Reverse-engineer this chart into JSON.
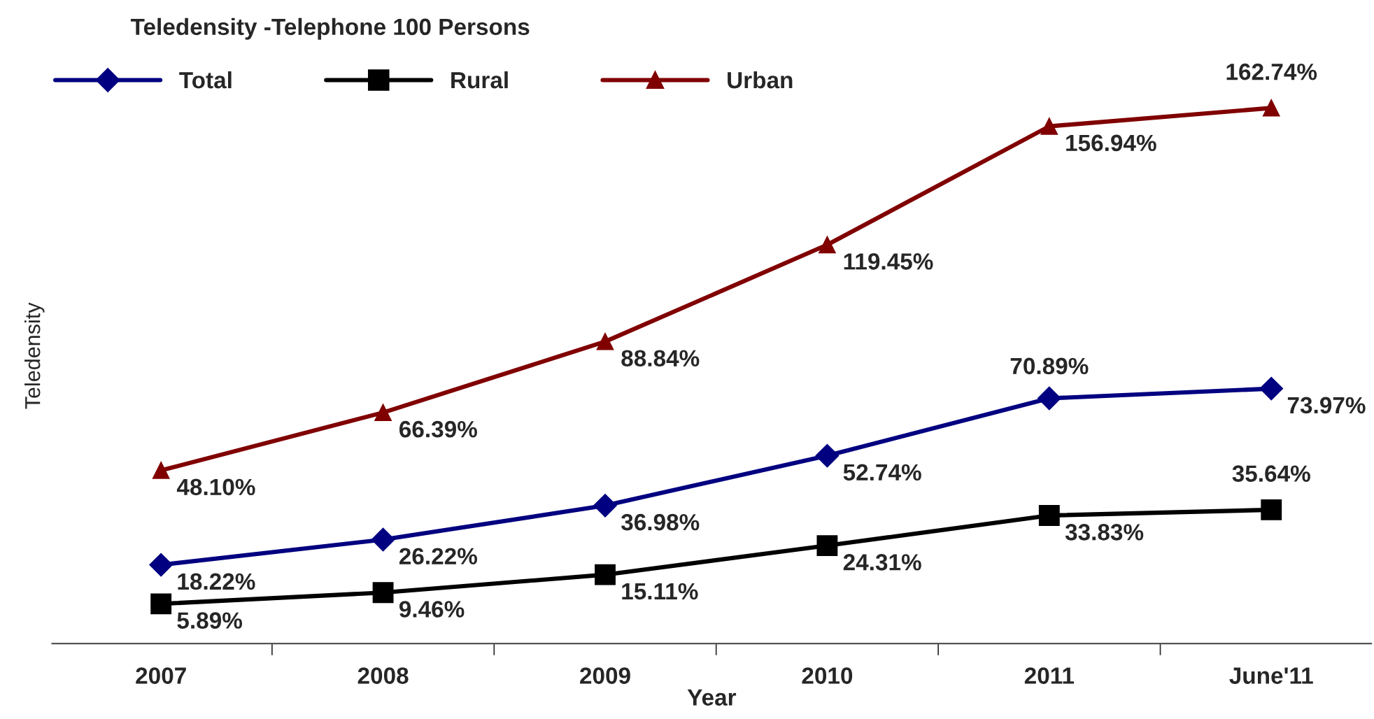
{
  "chart_data": {
    "type": "line",
    "title": "Teledensity -Telephone 100 Persons",
    "xlabel": "Year",
    "ylabel": "Teledensity",
    "categories": [
      "2007",
      "2008",
      "2009",
      "2010",
      "2011",
      "June'11"
    ],
    "series": [
      {
        "name": "Total",
        "color": "#000080",
        "marker": "diamond",
        "values": [
          18.22,
          26.22,
          36.98,
          52.74,
          70.89,
          73.97
        ],
        "value_labels": [
          "18.22%",
          "26.22%",
          "36.98%",
          "52.74%",
          "70.89%",
          "73.97%"
        ]
      },
      {
        "name": "Rural",
        "color": "#000000",
        "marker": "square",
        "values": [
          5.89,
          9.46,
          15.11,
          24.31,
          33.83,
          35.64
        ],
        "value_labels": [
          "5.89%",
          "9.46%",
          "15.11%",
          "24.31%",
          "33.83%",
          "35.64%"
        ]
      },
      {
        "name": "Urban",
        "color": "#800000",
        "marker": "triangle",
        "values": [
          48.1,
          66.39,
          88.84,
          119.45,
          156.94,
          162.74
        ],
        "value_labels": [
          "48.10%",
          "66.39%",
          "88.84%",
          "119.45%",
          "156.94%",
          "162.74%"
        ]
      }
    ],
    "tick_labels": "x",
    "legend": "top left",
    "grid": false,
    "line_style": "solid"
  }
}
